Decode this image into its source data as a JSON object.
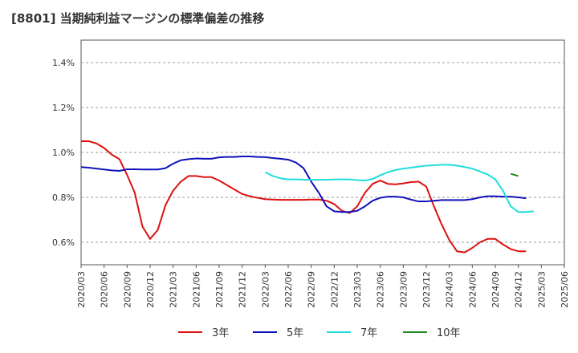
{
  "chart_data": {
    "type": "line",
    "title": "[8801]  当期純利益マージンの標準偏差の推移",
    "xlabel": "",
    "ylabel": "",
    "ylim": [
      0.5,
      1.5
    ],
    "yticks": [
      0.6,
      0.8,
      1.0,
      1.2,
      1.4
    ],
    "ytick_labels": [
      "0.6%",
      "0.8%",
      "1.0%",
      "1.2%",
      "1.4%"
    ],
    "grid": "horizontal dashed",
    "legend_position": "bottom",
    "x_start": "2020/03",
    "xtick_labels": [
      "2020/03",
      "2020/06",
      "2020/09",
      "2020/12",
      "2021/03",
      "2021/06",
      "2021/09",
      "2021/12",
      "2022/03",
      "2022/06",
      "2022/09",
      "2022/12",
      "2023/03",
      "2023/06",
      "2023/09",
      "2023/12",
      "2024/03",
      "2024/06",
      "2024/09",
      "2024/12",
      "2025/03",
      "2025/06"
    ],
    "series": [
      {
        "name": "3年",
        "color": "#dd1111",
        "start_index": 0,
        "values": [
          1.05,
          1.05,
          1.04,
          1.02,
          0.99,
          0.97,
          0.9,
          0.82,
          0.67,
          0.615,
          0.655,
          0.765,
          0.83,
          0.87,
          0.895,
          0.895,
          0.89,
          0.89,
          0.875,
          0.855,
          0.835,
          0.815,
          0.805,
          0.798,
          0.792,
          0.79,
          0.789,
          0.789,
          0.789,
          0.789,
          0.79,
          0.79,
          0.785,
          0.77,
          0.74,
          0.73,
          0.76,
          0.82,
          0.86,
          0.875,
          0.86,
          0.858,
          0.862,
          0.868,
          0.87,
          0.848,
          0.76,
          0.68,
          0.61,
          0.56,
          0.555,
          0.575,
          0.6,
          0.615,
          0.615,
          0.59,
          0.57,
          0.56,
          0.56
        ]
      },
      {
        "name": "5年",
        "color": "#1111bb",
        "start_index": 0,
        "values": [
          0.935,
          0.932,
          0.928,
          0.924,
          0.92,
          0.918,
          0.925,
          0.925,
          0.924,
          0.924,
          0.924,
          0.93,
          0.95,
          0.965,
          0.97,
          0.973,
          0.972,
          0.972,
          0.978,
          0.98,
          0.98,
          0.982,
          0.982,
          0.98,
          0.979,
          0.975,
          0.972,
          0.968,
          0.955,
          0.93,
          0.87,
          0.82,
          0.76,
          0.738,
          0.735,
          0.735,
          0.74,
          0.76,
          0.785,
          0.798,
          0.803,
          0.803,
          0.8,
          0.79,
          0.782,
          0.782,
          0.785,
          0.788,
          0.788,
          0.788,
          0.788,
          0.792,
          0.8,
          0.805,
          0.805,
          0.803,
          0.803,
          0.8,
          0.796
        ]
      },
      {
        "name": "7年",
        "color": "#22dddd",
        "start_index": 24,
        "values": [
          0.912,
          0.895,
          0.885,
          0.88,
          0.88,
          0.879,
          0.878,
          0.878,
          0.878,
          0.88,
          0.88,
          0.88,
          0.877,
          0.875,
          0.882,
          0.898,
          0.912,
          0.922,
          0.928,
          0.932,
          0.937,
          0.941,
          0.943,
          0.945,
          0.945,
          0.941,
          0.935,
          0.928,
          0.915,
          0.902,
          0.88,
          0.83,
          0.76,
          0.735,
          0.735,
          0.738
        ]
      },
      {
        "name": "10年",
        "color": "#228822",
        "start_index": 56,
        "values": [
          0.905,
          0.895
        ]
      }
    ]
  }
}
